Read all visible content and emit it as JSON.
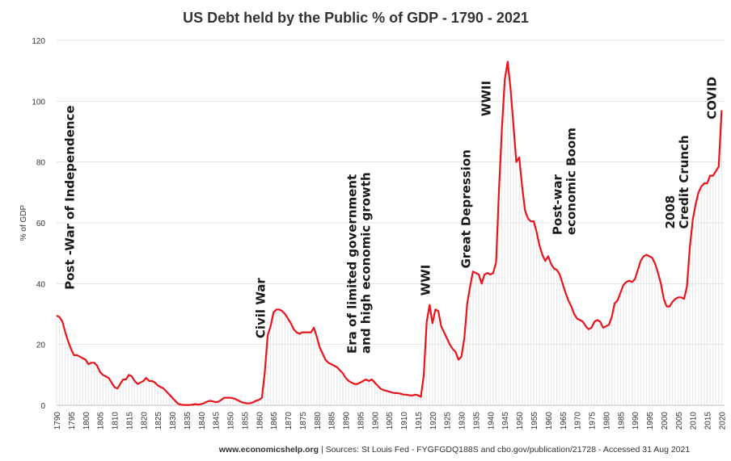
{
  "chart_data": {
    "type": "line",
    "title": "US Debt held by the Public % of GDP - 1790 - 2021",
    "xlabel": "",
    "ylabel": "% of GDP",
    "xlim": [
      1790,
      2021
    ],
    "ylim": [
      0,
      120
    ],
    "yticks": [
      0,
      20,
      40,
      60,
      80,
      100,
      120
    ],
    "xticks": [
      "1790",
      "1795",
      "1800",
      "1805",
      "1810",
      "1815",
      "1820",
      "1825",
      "1830",
      "1835",
      "1840",
      "1845",
      "1850",
      "1855",
      "1860",
      "1865",
      "1870",
      "1875",
      "1880",
      "1885",
      "1890",
      "1895",
      "1900",
      "1905",
      "1910",
      "1915",
      "1920",
      "1925",
      "1930",
      "1935",
      "1940",
      "1945",
      "1950",
      "1955",
      "1960",
      "1965",
      "1970",
      "1975",
      "1980",
      "1985",
      "1990",
      "1995",
      "2000",
      "2005",
      "2010",
      "2015",
      "2020"
    ],
    "line_color": "#e8141b",
    "grid": true,
    "series": [
      {
        "name": "Debt held by the public (% of GDP)",
        "points": [
          [
            1790,
            29.5
          ],
          [
            1791,
            29.0
          ],
          [
            1792,
            27.5
          ],
          [
            1793,
            24.0
          ],
          [
            1794,
            21.0
          ],
          [
            1795,
            18.5
          ],
          [
            1796,
            16.5
          ],
          [
            1797,
            16.5
          ],
          [
            1798,
            16.0
          ],
          [
            1799,
            15.5
          ],
          [
            1800,
            15.0
          ],
          [
            1801,
            13.5
          ],
          [
            1802,
            14.0
          ],
          [
            1803,
            14.0
          ],
          [
            1804,
            13.0
          ],
          [
            1805,
            11.0
          ],
          [
            1806,
            10.0
          ],
          [
            1807,
            9.5
          ],
          [
            1808,
            9.0
          ],
          [
            1809,
            7.5
          ],
          [
            1810,
            6.0
          ],
          [
            1811,
            5.5
          ],
          [
            1812,
            7.0
          ],
          [
            1813,
            8.5
          ],
          [
            1814,
            8.5
          ],
          [
            1815,
            10.0
          ],
          [
            1816,
            9.5
          ],
          [
            1817,
            8.0
          ],
          [
            1818,
            7.0
          ],
          [
            1819,
            7.5
          ],
          [
            1820,
            8.0
          ],
          [
            1821,
            9.0
          ],
          [
            1822,
            8.0
          ],
          [
            1823,
            8.0
          ],
          [
            1824,
            7.5
          ],
          [
            1825,
            6.5
          ],
          [
            1826,
            6.0
          ],
          [
            1827,
            5.5
          ],
          [
            1828,
            4.5
          ],
          [
            1829,
            3.5
          ],
          [
            1830,
            2.5
          ],
          [
            1831,
            1.5
          ],
          [
            1832,
            0.5
          ],
          [
            1833,
            0.2
          ],
          [
            1834,
            0.1
          ],
          [
            1835,
            0.1
          ],
          [
            1836,
            0.1
          ],
          [
            1837,
            0.2
          ],
          [
            1838,
            0.4
          ],
          [
            1839,
            0.2
          ],
          [
            1840,
            0.4
          ],
          [
            1841,
            0.7
          ],
          [
            1842,
            1.2
          ],
          [
            1843,
            1.5
          ],
          [
            1844,
            1.3
          ],
          [
            1845,
            1.0
          ],
          [
            1846,
            1.2
          ],
          [
            1847,
            1.8
          ],
          [
            1848,
            2.5
          ],
          [
            1849,
            2.5
          ],
          [
            1850,
            2.5
          ],
          [
            1851,
            2.3
          ],
          [
            1852,
            2.0
          ],
          [
            1853,
            1.5
          ],
          [
            1854,
            1.0
          ],
          [
            1855,
            0.8
          ],
          [
            1856,
            0.6
          ],
          [
            1857,
            0.7
          ],
          [
            1858,
            1.0
          ],
          [
            1859,
            1.5
          ],
          [
            1860,
            1.8
          ],
          [
            1861,
            2.5
          ],
          [
            1862,
            11.0
          ],
          [
            1863,
            23.0
          ],
          [
            1864,
            26.0
          ],
          [
            1865,
            30.5
          ],
          [
            1866,
            31.5
          ],
          [
            1867,
            31.5
          ],
          [
            1868,
            31.0
          ],
          [
            1869,
            30.0
          ],
          [
            1870,
            28.5
          ],
          [
            1871,
            27.0
          ],
          [
            1872,
            25.0
          ],
          [
            1873,
            24.0
          ],
          [
            1874,
            23.5
          ],
          [
            1875,
            24.0
          ],
          [
            1876,
            24.0
          ],
          [
            1877,
            24.0
          ],
          [
            1878,
            24.0
          ],
          [
            1879,
            25.5
          ],
          [
            1880,
            22.5
          ],
          [
            1881,
            19.0
          ],
          [
            1882,
            17.0
          ],
          [
            1883,
            15.0
          ],
          [
            1884,
            14.0
          ],
          [
            1885,
            13.5
          ],
          [
            1886,
            13.0
          ],
          [
            1887,
            12.5
          ],
          [
            1888,
            11.5
          ],
          [
            1889,
            10.5
          ],
          [
            1890,
            9.0
          ],
          [
            1891,
            8.0
          ],
          [
            1892,
            7.5
          ],
          [
            1893,
            7.0
          ],
          [
            1894,
            7.0
          ],
          [
            1895,
            7.5
          ],
          [
            1896,
            8.0
          ],
          [
            1897,
            8.5
          ],
          [
            1898,
            8.0
          ],
          [
            1899,
            8.5
          ],
          [
            1900,
            7.5
          ],
          [
            1901,
            6.5
          ],
          [
            1902,
            5.5
          ],
          [
            1903,
            5.0
          ],
          [
            1904,
            4.8
          ],
          [
            1905,
            4.5
          ],
          [
            1906,
            4.2
          ],
          [
            1907,
            4.0
          ],
          [
            1908,
            4.0
          ],
          [
            1909,
            3.8
          ],
          [
            1910,
            3.5
          ],
          [
            1911,
            3.5
          ],
          [
            1912,
            3.3
          ],
          [
            1913,
            3.2
          ],
          [
            1914,
            3.5
          ],
          [
            1915,
            3.3
          ],
          [
            1916,
            2.8
          ],
          [
            1917,
            10.0
          ],
          [
            1918,
            27.5
          ],
          [
            1919,
            33.0
          ],
          [
            1920,
            27.0
          ],
          [
            1921,
            31.5
          ],
          [
            1922,
            31.0
          ],
          [
            1923,
            26.0
          ],
          [
            1924,
            24.0
          ],
          [
            1925,
            22.0
          ],
          [
            1926,
            20.0
          ],
          [
            1927,
            18.5
          ],
          [
            1928,
            17.5
          ],
          [
            1929,
            15.0
          ],
          [
            1930,
            16.0
          ],
          [
            1931,
            22.0
          ],
          [
            1932,
            33.5
          ],
          [
            1933,
            39.0
          ],
          [
            1934,
            44.0
          ],
          [
            1935,
            43.5
          ],
          [
            1936,
            43.0
          ],
          [
            1937,
            40.0
          ],
          [
            1938,
            43.0
          ],
          [
            1939,
            43.5
          ],
          [
            1940,
            43.0
          ],
          [
            1941,
            43.5
          ],
          [
            1942,
            47.0
          ],
          [
            1943,
            71.0
          ],
          [
            1944,
            91.0
          ],
          [
            1945,
            107.0
          ],
          [
            1946,
            113.0
          ],
          [
            1947,
            104.0
          ],
          [
            1948,
            92.0
          ],
          [
            1949,
            80.0
          ],
          [
            1950,
            81.5
          ],
          [
            1951,
            72.0
          ],
          [
            1952,
            64.0
          ],
          [
            1953,
            61.5
          ],
          [
            1954,
            60.5
          ],
          [
            1955,
            60.5
          ],
          [
            1956,
            57.0
          ],
          [
            1957,
            52.5
          ],
          [
            1958,
            49.5
          ],
          [
            1959,
            47.5
          ],
          [
            1960,
            49.0
          ],
          [
            1961,
            46.5
          ],
          [
            1962,
            45.0
          ],
          [
            1963,
            44.5
          ],
          [
            1964,
            43.0
          ],
          [
            1965,
            40.0
          ],
          [
            1966,
            37.0
          ],
          [
            1967,
            34.5
          ],
          [
            1968,
            32.5
          ],
          [
            1969,
            30.0
          ],
          [
            1970,
            28.5
          ],
          [
            1971,
            28.0
          ],
          [
            1972,
            27.5
          ],
          [
            1973,
            26.0
          ],
          [
            1974,
            25.0
          ],
          [
            1975,
            25.5
          ],
          [
            1976,
            27.5
          ],
          [
            1977,
            28.0
          ],
          [
            1978,
            27.5
          ],
          [
            1979,
            25.5
          ],
          [
            1980,
            26.0
          ],
          [
            1981,
            26.5
          ],
          [
            1982,
            29.0
          ],
          [
            1983,
            33.5
          ],
          [
            1984,
            34.5
          ],
          [
            1985,
            37.0
          ],
          [
            1986,
            39.5
          ],
          [
            1987,
            40.5
          ],
          [
            1988,
            41.0
          ],
          [
            1989,
            40.5
          ],
          [
            1990,
            41.5
          ],
          [
            1991,
            44.5
          ],
          [
            1992,
            47.5
          ],
          [
            1993,
            49.0
          ],
          [
            1994,
            49.5
          ],
          [
            1995,
            49.0
          ],
          [
            1996,
            48.5
          ],
          [
            1997,
            46.5
          ],
          [
            1998,
            43.5
          ],
          [
            1999,
            40.0
          ],
          [
            2000,
            35.0
          ],
          [
            2001,
            32.5
          ],
          [
            2002,
            32.5
          ],
          [
            2003,
            34.0
          ],
          [
            2004,
            35.0
          ],
          [
            2005,
            35.5
          ],
          [
            2006,
            35.5
          ],
          [
            2007,
            35.0
          ],
          [
            2008,
            39.0
          ],
          [
            2009,
            52.0
          ],
          [
            2010,
            61.0
          ],
          [
            2011,
            66.0
          ],
          [
            2012,
            70.0
          ],
          [
            2013,
            72.0
          ],
          [
            2014,
            73.0
          ],
          [
            2015,
            73.0
          ],
          [
            2016,
            75.5
          ],
          [
            2017,
            75.5
          ],
          [
            2018,
            77.0
          ],
          [
            2019,
            78.5
          ],
          [
            2020,
            97.0
          ]
        ]
      }
    ],
    "annotations": [
      {
        "lines": [
          "Post -War of Independence"
        ],
        "year": 1796,
        "value": 38
      },
      {
        "lines": [
          "Civil War"
        ],
        "year": 1862,
        "value": 22
      },
      {
        "lines": [
          "Era of limited government",
          "and high economic growth"
        ],
        "year": 1896,
        "value": 17
      },
      {
        "lines": [
          "WWI"
        ],
        "year": 1919,
        "value": 36
      },
      {
        "lines": [
          "Great Depression"
        ],
        "year": 1933,
        "value": 45
      },
      {
        "lines": [
          "WWII"
        ],
        "year": 1940,
        "value": 95
      },
      {
        "lines": [
          "Post-war",
          "economic Boom"
        ],
        "year": 1967,
        "value": 56
      },
      {
        "lines": [
          "2008",
          "Credit Crunch"
        ],
        "year": 2006,
        "value": 58
      },
      {
        "lines": [
          "COVID"
        ],
        "year": 2018,
        "value": 94
      }
    ]
  },
  "footer": {
    "source_site": "www.economicshelp.org",
    "source_text": " | Sources: St Louis Fed - FYGFGDQ188S and cbo.gov/publication/21728 - Accessed 31 Aug 2021"
  }
}
